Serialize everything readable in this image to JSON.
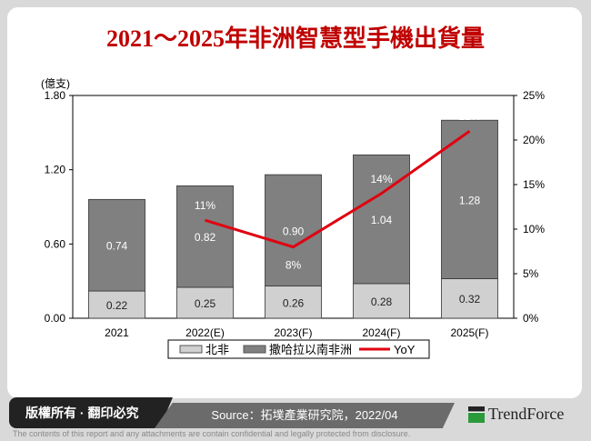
{
  "title": "2021～2025年非洲智慧型手機出貨量",
  "footer": {
    "copyright": "版權所有 · 翻印必究",
    "source": "Source：拓墣產業研究院，2022/04",
    "logo": "TrendForce",
    "disclaimer": "The contents of this report and any attachments are contain confidential and legally protected from disclosure."
  },
  "chart_data": {
    "type": "bar",
    "stacked": true,
    "ylabel": "(億支)",
    "ylim": [
      0,
      1.8
    ],
    "y_ticks": [
      "0.00",
      "0.60",
      "1.20",
      "1.80"
    ],
    "y2lim": [
      0,
      25
    ],
    "y2_ticks": [
      "0%",
      "5%",
      "10%",
      "15%",
      "20%",
      "25%"
    ],
    "categories": [
      "2021",
      "2022(E)",
      "2023(F)",
      "2024(F)",
      "2025(F)"
    ],
    "series": [
      {
        "name": "北非",
        "values": [
          0.22,
          0.25,
          0.26,
          0.28,
          0.32
        ],
        "color": "#d0d0d0",
        "labels": [
          "0.22",
          "0.25",
          "0.26",
          "0.28",
          "0.32"
        ]
      },
      {
        "name": "撒哈拉以南非洲",
        "values": [
          0.74,
          0.82,
          0.9,
          1.04,
          1.28
        ],
        "color": "#808080",
        "labels": [
          "0.74",
          "0.82",
          "0.90",
          "1.04",
          "1.28"
        ]
      },
      {
        "name": "YoY",
        "type": "line",
        "axis": "right",
        "values": [
          null,
          11,
          8,
          14,
          21
        ],
        "color": "#e00010",
        "labels": [
          "",
          "11%",
          "8%",
          "14%",
          "21%"
        ]
      }
    ],
    "legend": "bottom"
  }
}
